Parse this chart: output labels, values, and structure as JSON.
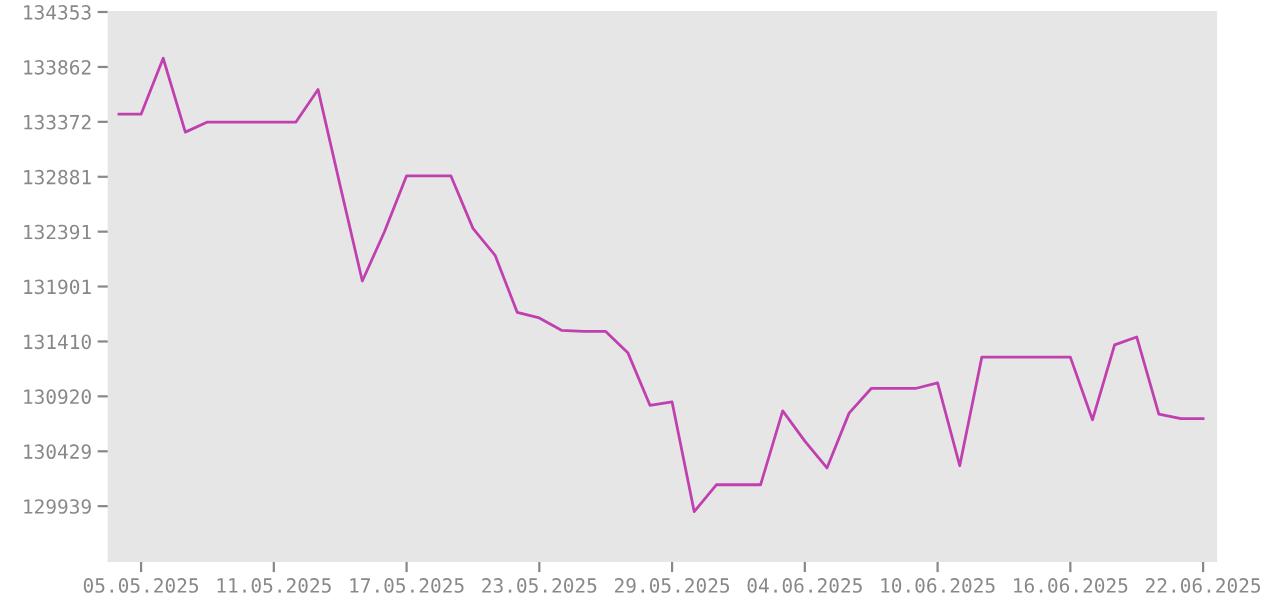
{
  "chart_data": {
    "type": "line",
    "x": [
      "2025-05-04",
      "2025-05-05",
      "2025-05-06",
      "2025-05-07",
      "2025-05-08",
      "2025-05-09",
      "2025-05-10",
      "2025-05-11",
      "2025-05-12",
      "2025-05-13",
      "2025-05-14",
      "2025-05-15",
      "2025-05-16",
      "2025-05-17",
      "2025-05-18",
      "2025-05-19",
      "2025-05-20",
      "2025-05-21",
      "2025-05-22",
      "2025-05-23",
      "2025-05-24",
      "2025-05-25",
      "2025-05-26",
      "2025-05-27",
      "2025-05-28",
      "2025-05-29",
      "2025-05-30",
      "2025-05-31",
      "2025-06-01",
      "2025-06-02",
      "2025-06-03",
      "2025-06-04",
      "2025-06-05",
      "2025-06-06",
      "2025-06-07",
      "2025-06-08",
      "2025-06-09",
      "2025-06-10",
      "2025-06-11",
      "2025-06-12",
      "2025-06-13",
      "2025-06-14",
      "2025-06-15",
      "2025-06-16",
      "2025-06-17",
      "2025-06-18",
      "2025-06-19",
      "2025-06-20",
      "2025-06-21",
      "2025-06-22"
    ],
    "series": [
      {
        "color": "#c040b0",
        "values": [
          133440,
          133440,
          133940,
          133280,
          133370,
          133370,
          133370,
          133370,
          133370,
          133660,
          132800,
          131950,
          132390,
          132890,
          132890,
          132890,
          132420,
          132180,
          131670,
          131620,
          131510,
          131500,
          131500,
          131310,
          130840,
          130870,
          129890,
          130130,
          130130,
          130130,
          130790,
          130520,
          130280,
          130770,
          130990,
          130990,
          130990,
          131040,
          130300,
          131270,
          131270,
          131270,
          131270,
          131270,
          130710,
          131380,
          131450,
          130760,
          130720,
          130720
        ]
      }
    ],
    "xlim": [
      "2025-05-03T13:00",
      "2025-06-22T14:00"
    ],
    "xticks": [
      {
        "value": "2025-05-05",
        "label": "05.05.2025"
      },
      {
        "value": "2025-05-11",
        "label": "11.05.2025"
      },
      {
        "value": "2025-05-17",
        "label": "17.05.2025"
      },
      {
        "value": "2025-05-23",
        "label": "23.05.2025"
      },
      {
        "value": "2025-05-29",
        "label": "29.05.2025"
      },
      {
        "value": "2025-06-04",
        "label": "04.06.2025"
      },
      {
        "value": "2025-06-10",
        "label": "10.06.2025"
      },
      {
        "value": "2025-06-16",
        "label": "16.06.2025"
      },
      {
        "value": "2025-06-22",
        "label": "22.06.2025"
      }
    ],
    "ylim": [
      129449,
      134353
    ],
    "yticks": [
      129939,
      130429,
      130920,
      131410,
      131901,
      132391,
      132881,
      133372,
      133862,
      134353
    ],
    "grid": false,
    "legend": false,
    "marker": "none",
    "line_style": "solid"
  }
}
